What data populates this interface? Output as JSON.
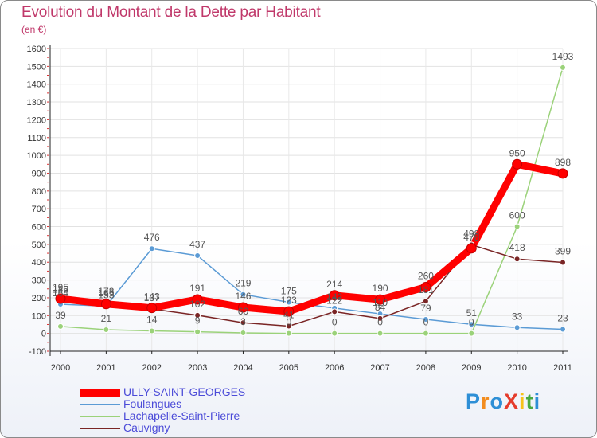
{
  "title": "Evolution du Montant de la Dette par Habitant",
  "subtitle": "(en €)",
  "logo": {
    "text": "ProXiti",
    "letters": [
      "P",
      "r",
      "o",
      "X",
      "i",
      "t",
      "i"
    ],
    "colors": [
      "#2e8fd6",
      "#f28c1e",
      "#2e8fd6",
      "#e53c2c",
      "#f6c219",
      "#49a942",
      "#2e8fd6"
    ]
  },
  "chart_data": {
    "type": "line",
    "title": "Evolution du Montant de la Dette par Habitant",
    "ylabel": "(en €)",
    "xlabel": "",
    "ylim": [
      -100,
      1600
    ],
    "yticks": [
      "-100",
      "0",
      "100",
      "200",
      "300",
      "400",
      "500",
      "600",
      "700",
      "800",
      "900",
      "1000",
      "1100",
      "1200",
      "1300",
      "1400",
      "1500",
      "1600"
    ],
    "x": [
      "2000",
      "2001",
      "2002",
      "2003",
      "2004",
      "2005",
      "2006",
      "2007",
      "2008",
      "2009",
      "2010",
      "2011"
    ],
    "legend_position": "bottom-left",
    "series": [
      {
        "name": "Foulangues",
        "color": "#5b9bd5",
        "values": [
          164,
          153,
          476,
          437,
          219,
          175,
          142,
          110,
          79,
          51,
          33,
          23
        ],
        "labels": [
          "164",
          "153",
          "476",
          "437",
          "219",
          "175",
          "142",
          "110",
          "79",
          "51",
          "33",
          "23"
        ]
      },
      {
        "name": "Lachapelle-Saint-Pierre",
        "color": "#9bd27a",
        "values": [
          39,
          21,
          14,
          9,
          3,
          0,
          0,
          0,
          0,
          0,
          600,
          1493
        ],
        "labels": [
          "39",
          "21",
          "14",
          "9",
          "3",
          "0",
          "0",
          "0",
          "0",
          "0",
          "600",
          "1493"
        ]
      },
      {
        "name": "Cauvigny",
        "color": "#7a2525",
        "values": [
          185,
          173,
          137,
          102,
          60,
          41,
          122,
          84,
          181,
          498,
          418,
          399
        ],
        "labels": [
          "185",
          "173",
          "137",
          "102",
          "60",
          "41",
          "122",
          "84",
          "181",
          "498",
          "418",
          "399"
        ]
      },
      {
        "name": "ULLY-SAINT-GEORGES",
        "color": "#ff0000",
        "values": [
          195,
          165,
          143,
          191,
          146,
          123,
          214,
          190,
          260,
          478,
          950,
          898
        ],
        "labels": [
          "195",
          "165",
          "143",
          "191",
          "146",
          "123",
          "214",
          "190",
          "260",
          "478",
          "950",
          "898"
        ]
      }
    ]
  },
  "legend": [
    {
      "name": "ULLY-SAINT-GEORGES",
      "color": "#ff0000",
      "text_color": "#4b4bd8"
    },
    {
      "name": "Foulangues",
      "color": "#5b9bd5",
      "text_color": "#4b4bd8"
    },
    {
      "name": "Lachapelle-Saint-Pierre",
      "color": "#9bd27a",
      "text_color": "#4b4bd8"
    },
    {
      "name": "Cauvigny",
      "color": "#7a2525",
      "text_color": "#4b4bd8"
    }
  ]
}
